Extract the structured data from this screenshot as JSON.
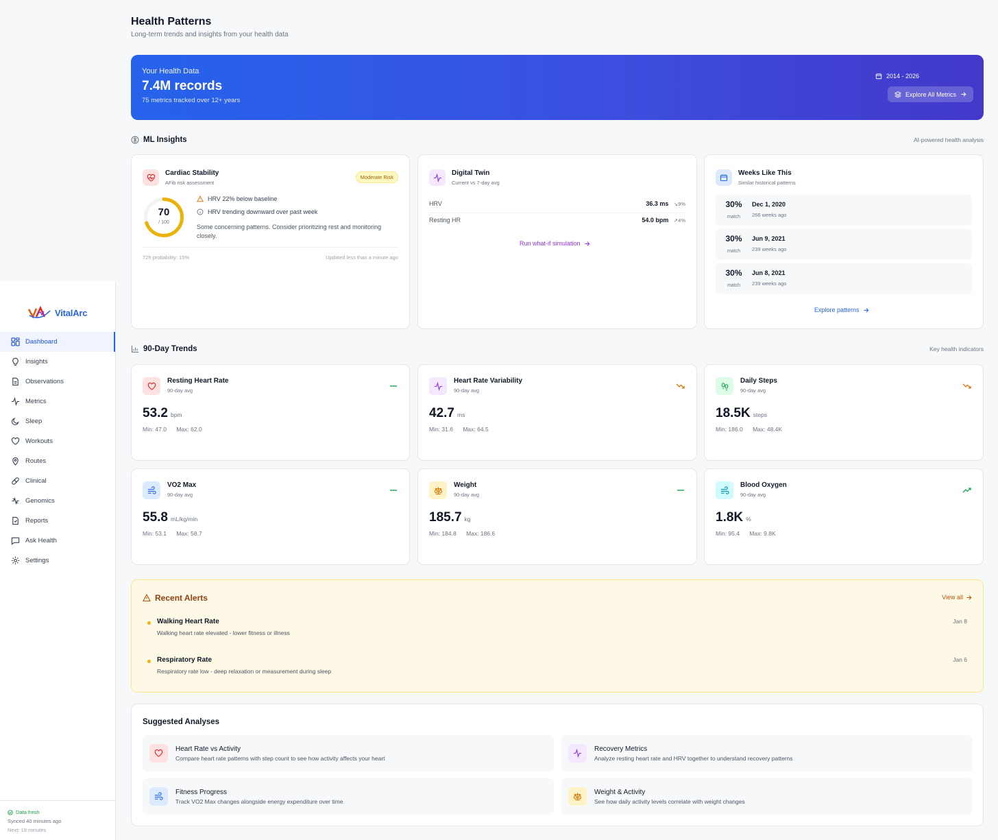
{
  "app": {
    "name": "VitalArc"
  },
  "sidebar": {
    "items": [
      {
        "label": "Dashboard",
        "icon": "grid-icon"
      },
      {
        "label": "Insights",
        "icon": "lightbulb-icon"
      },
      {
        "label": "Observations",
        "icon": "document-icon"
      },
      {
        "label": "Metrics",
        "icon": "activity-icon"
      },
      {
        "label": "Sleep",
        "icon": "moon-icon"
      },
      {
        "label": "Workouts",
        "icon": "heart-icon"
      },
      {
        "label": "Routes",
        "icon": "map-pin-icon"
      },
      {
        "label": "Clinical",
        "icon": "pill-icon"
      },
      {
        "label": "Genomics",
        "icon": "dna-icon"
      },
      {
        "label": "Reports",
        "icon": "report-icon"
      },
      {
        "label": "Ask Health",
        "icon": "chat-icon"
      },
      {
        "label": "Settings",
        "icon": "gear-icon"
      }
    ],
    "sync": {
      "status": "Data fresh",
      "synced": "Synced 40 minutes ago",
      "next": "Next: 19 minutes"
    }
  },
  "header": {
    "title": "Health Patterns",
    "subtitle": "Long-term trends and insights from your health data"
  },
  "hero": {
    "label": "Your Health Data",
    "value": "7.4M records",
    "sub": "75 metrics tracked over 12+ years",
    "range": "2014 - 2026",
    "button": "Explore All Metrics"
  },
  "ml": {
    "title": "ML Insights",
    "right": "AI-powered health analysis",
    "cardiac": {
      "title": "Cardiac Stability",
      "sub": "AFib risk assessment",
      "badge": "Moderate Risk",
      "score": "70",
      "score_max": "/ 100",
      "score_value": 70,
      "msg1": "HRV 22% below baseline",
      "msg2": "HRV trending downward over past week",
      "note": "Some concerning patterns. Consider prioritizing rest and monitoring closely.",
      "foot_left": "72h probability: 15%",
      "foot_right": "Updated less than a minute ago"
    },
    "twin": {
      "title": "Digital Twin",
      "sub": "Current vs 7-day avg",
      "rows": [
        {
          "label": "HRV",
          "value": "36.3 ms",
          "delta": "9%"
        },
        {
          "label": "Resting HR",
          "value": "54.0 bpm",
          "delta": "4%"
        }
      ],
      "link": "Run what-if simulation"
    },
    "weeks": {
      "title": "Weeks Like This",
      "sub": "Similar historical patterns",
      "match_label": "match",
      "items": [
        {
          "pct": "30%",
          "date": "Dec 1, 2020",
          "ago": "266 weeks ago"
        },
        {
          "pct": "30%",
          "date": "Jun 9, 2021",
          "ago": "239 weeks ago"
        },
        {
          "pct": "30%",
          "date": "Jun 8, 2021",
          "ago": "239 weeks ago"
        }
      ],
      "link": "Explore patterns"
    }
  },
  "trends": {
    "title": "90-Day Trends",
    "right": "Key health indicators",
    "items": [
      {
        "name": "Resting Heart Rate",
        "sub": "90-day avg",
        "value": "53.2",
        "unit": "bpm",
        "min": "Min: 47.0",
        "max": "Max: 62.0",
        "trend": "flat",
        "icon": "heart-icon",
        "color": "#dc2626",
        "bg": "#fee2e2"
      },
      {
        "name": "Heart Rate Variability",
        "sub": "90-day avg",
        "value": "42.7",
        "unit": "ms",
        "min": "Min: 31.6",
        "max": "Max: 64.5",
        "trend": "down",
        "icon": "activity-icon",
        "color": "#9333ea",
        "bg": "#f3e8ff"
      },
      {
        "name": "Daily Steps",
        "sub": "90-day avg",
        "value": "18.5K",
        "unit": "steps",
        "min": "Min: 186.0",
        "max": "Max: 48.4K",
        "trend": "down",
        "icon": "footprints-icon",
        "color": "#16a34a",
        "bg": "#dcfce7"
      },
      {
        "name": "VO2 Max",
        "sub": "90-day avg",
        "value": "55.8",
        "unit": "mL/kg/min",
        "min": "Min: 53.1",
        "max": "Max: 58.7",
        "trend": "flat",
        "icon": "wind-icon",
        "color": "#2563eb",
        "bg": "#dbeafe"
      },
      {
        "name": "Weight",
        "sub": "90-day avg",
        "value": "185.7",
        "unit": "kg",
        "min": "Min: 184.8",
        "max": "Max: 186.6",
        "trend": "flat",
        "icon": "scale-icon",
        "color": "#d97706",
        "bg": "#fef3c7"
      },
      {
        "name": "Blood Oxygen",
        "sub": "90-day avg",
        "value": "1.8K",
        "unit": "%",
        "min": "Min: 95.4",
        "max": "Max: 9.8K",
        "trend": "up",
        "icon": "wind-icon",
        "color": "#0891b2",
        "bg": "#cffafe"
      }
    ]
  },
  "alerts": {
    "title": "Recent Alerts",
    "view_all": "View all",
    "items": [
      {
        "name": "Walking Heart Rate",
        "desc": "Walking heart rate elevated - lower fitness or illness",
        "date": "Jan 8"
      },
      {
        "name": "Respiratory Rate",
        "desc": "Respiratory rate low - deep relaxation or measurement during sleep",
        "date": "Jan 6"
      }
    ]
  },
  "suggested": {
    "title": "Suggested Analyses",
    "items": [
      {
        "name": "Heart Rate vs Activity",
        "desc": "Compare heart rate patterns with step count to see how activity affects your heart",
        "icon": "heart-icon",
        "color": "#dc2626",
        "bg": "#fee2e2"
      },
      {
        "name": "Recovery Metrics",
        "desc": "Analyze resting heart rate and HRV together to understand recovery patterns",
        "icon": "activity-icon",
        "color": "#9333ea",
        "bg": "#f3e8ff"
      },
      {
        "name": "Fitness Progress",
        "desc": "Track VO2 Max changes alongside energy expenditure over time",
        "icon": "wind-icon",
        "color": "#2563eb",
        "bg": "#dbeafe"
      },
      {
        "name": "Weight & Activity",
        "desc": "See how daily activity levels correlate with weight changes",
        "icon": "scale-icon",
        "color": "#d97706",
        "bg": "#fef3c7"
      }
    ]
  }
}
